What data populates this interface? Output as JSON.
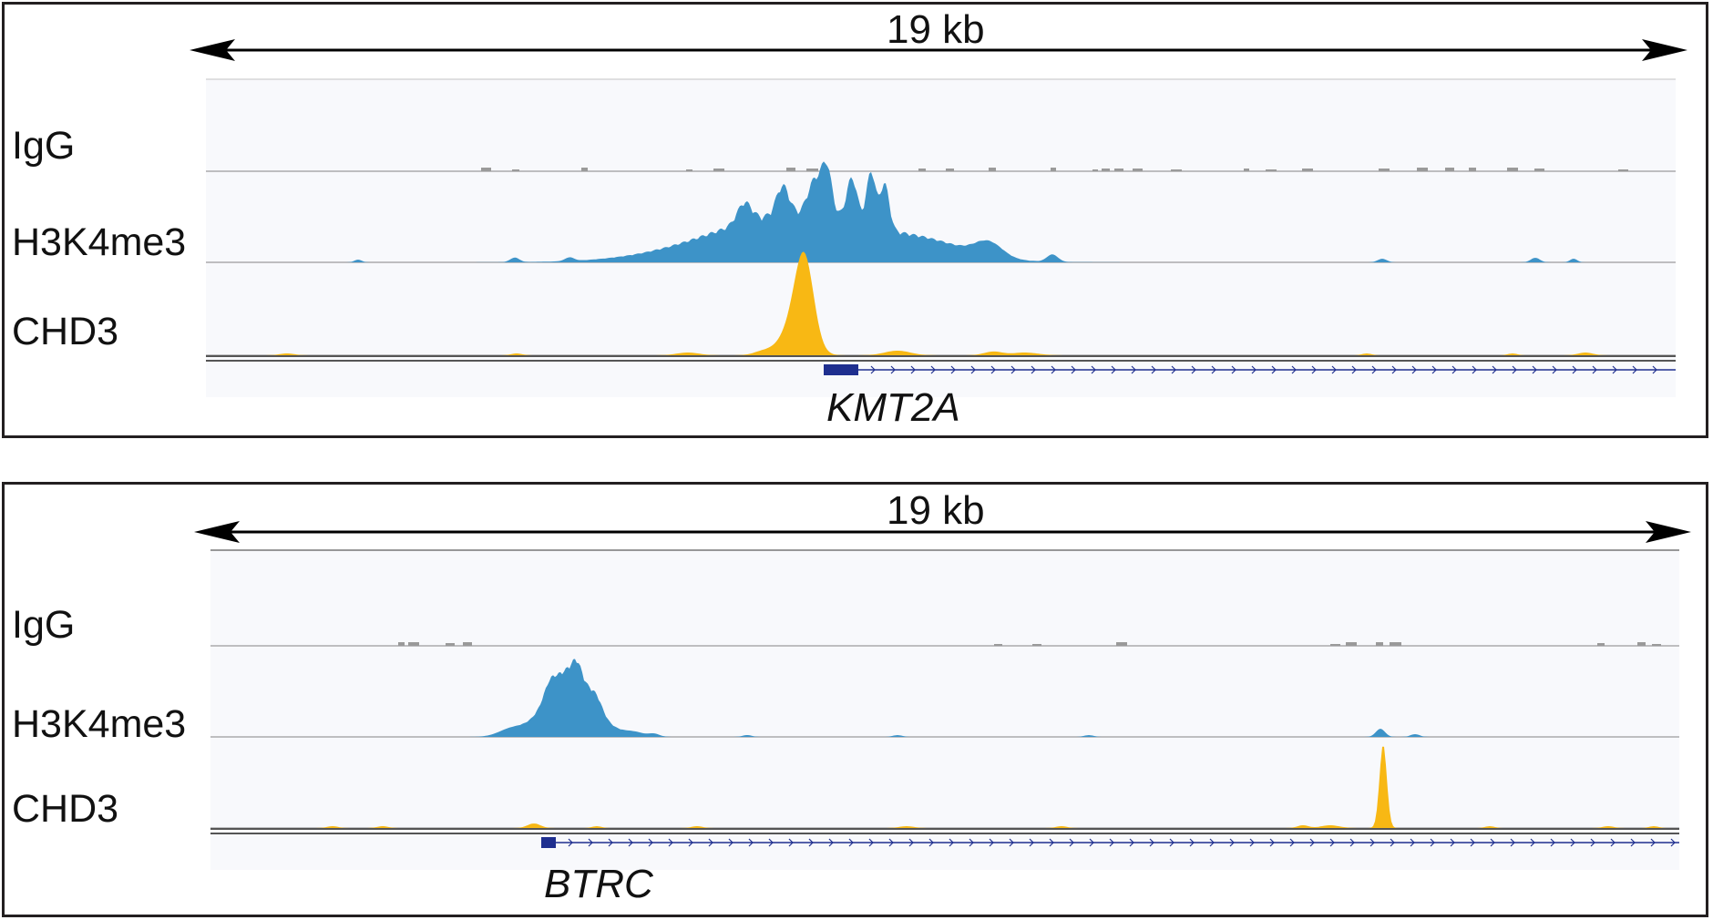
{
  "colors": {
    "igg": "#9a9a9a",
    "h3k4me3": "#3d93c8",
    "chd3": "#f8b814",
    "gene": "#1f2f8f",
    "frame": "#231f20",
    "track_bg": "#f8f9fc"
  },
  "panels": [
    {
      "scale_label": "19 kb",
      "tracks": [
        {
          "label": "IgG"
        },
        {
          "label": "H3K4me3"
        },
        {
          "label": "CHD3"
        }
      ],
      "gene": {
        "label": "KMT2A",
        "strand": "+"
      }
    },
    {
      "scale_label": "19 kb",
      "tracks": [
        {
          "label": "IgG"
        },
        {
          "label": "H3K4me3"
        },
        {
          "label": "CHD3"
        }
      ],
      "gene": {
        "label": "BTRC",
        "strand": "+"
      }
    }
  ]
}
